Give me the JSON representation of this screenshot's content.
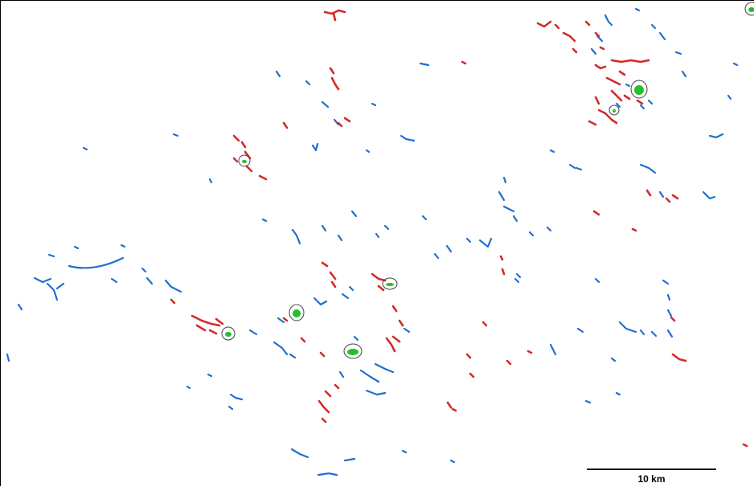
{
  "map": {
    "colors": {
      "blue_features": "#1f6fd1",
      "red_features": "#d42a2a",
      "green_features": "#22c02a",
      "outline": "#444444",
      "background": "#ffffff"
    },
    "scale_bar": {
      "label": "10 km"
    }
  }
}
